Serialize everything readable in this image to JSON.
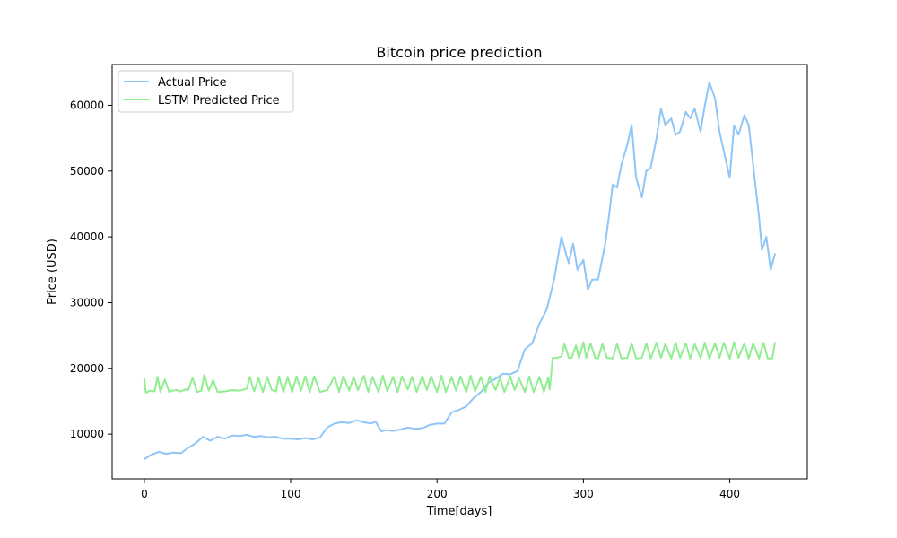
{
  "chart_data": {
    "type": "line",
    "title": "Bitcoin price prediction",
    "xlabel": "Time[days]",
    "ylabel": "Price (USD)",
    "xlim": [
      -22,
      453
    ],
    "ylim": [
      3200,
      66200
    ],
    "xticks": [
      0,
      100,
      200,
      300,
      400
    ],
    "yticks": [
      10000,
      20000,
      30000,
      40000,
      50000,
      60000
    ],
    "grid": false,
    "legend_position": "top-left",
    "series": [
      {
        "name": "Actual Price",
        "color": "#8fc6f7",
        "x": [
          0,
          5,
          10,
          15,
          20,
          25,
          30,
          35,
          40,
          45,
          50,
          55,
          60,
          65,
          70,
          75,
          80,
          85,
          90,
          95,
          100,
          105,
          110,
          115,
          120,
          125,
          130,
          135,
          140,
          145,
          150,
          155,
          158,
          162,
          165,
          170,
          175,
          180,
          185,
          190,
          195,
          200,
          205,
          210,
          215,
          220,
          225,
          230,
          235,
          240,
          245,
          250,
          255,
          260,
          265,
          270,
          275,
          280,
          285,
          288,
          290,
          293,
          296,
          300,
          303,
          306,
          310,
          315,
          318,
          320,
          323,
          326,
          330,
          333,
          336,
          340,
          343,
          346,
          350,
          353,
          356,
          360,
          363,
          366,
          370,
          373,
          376,
          380,
          383,
          386,
          390,
          393,
          396,
          400,
          403,
          406,
          410,
          413,
          416,
          420,
          422,
          425,
          428,
          431
        ],
        "values": [
          6200,
          6900,
          7300,
          7000,
          7200,
          7100,
          7900,
          8600,
          9600,
          9000,
          9600,
          9300,
          9800,
          9700,
          9900,
          9600,
          9700,
          9500,
          9600,
          9300,
          9300,
          9200,
          9400,
          9200,
          9500,
          11000,
          11600,
          11800,
          11700,
          12100,
          11800,
          11600,
          11900,
          10400,
          10600,
          10500,
          10700,
          11000,
          10800,
          10900,
          11400,
          11600,
          11600,
          13300,
          13700,
          14200,
          15500,
          16400,
          17800,
          18400,
          19200,
          19100,
          19600,
          22900,
          23800,
          26800,
          29000,
          33500,
          40000,
          37500,
          36000,
          39000,
          35000,
          36500,
          32000,
          33500,
          33500,
          39000,
          44000,
          48000,
          47500,
          51000,
          54000,
          57000,
          49000,
          46000,
          50000,
          50500,
          55000,
          59500,
          57000,
          58000,
          55500,
          56000,
          59000,
          58000,
          59500,
          56000,
          60000,
          63500,
          61000,
          56000,
          53000,
          49000,
          57000,
          55500,
          58500,
          57000,
          51000,
          43000,
          38000,
          40000,
          35000,
          37500
        ]
      },
      {
        "name": "LSTM Predicted Price",
        "color": "#90ee90",
        "x": [
          0,
          1,
          4,
          7,
          9,
          11,
          14,
          17,
          19,
          22,
          25,
          28,
          30,
          33,
          36,
          39,
          41,
          44,
          47,
          50,
          55,
          60,
          65,
          70,
          72,
          75,
          78,
          81,
          84,
          87,
          90,
          92,
          95,
          98,
          101,
          104,
          107,
          110,
          113,
          116,
          120,
          125,
          130,
          133,
          136,
          140,
          143,
          146,
          150,
          153,
          156,
          160,
          163,
          166,
          170,
          173,
          176,
          180,
          183,
          186,
          190,
          193,
          196,
          200,
          203,
          206,
          210,
          213,
          216,
          220,
          223,
          226,
          230,
          233,
          236,
          240,
          243,
          246,
          250,
          253,
          256,
          260,
          263,
          266,
          270,
          273,
          276,
          277,
          279,
          282,
          285,
          287,
          290,
          292,
          295,
          297,
          300,
          302,
          305,
          308,
          310,
          313,
          316,
          320,
          323,
          326,
          330,
          333,
          336,
          340,
          343,
          346,
          350,
          353,
          356,
          360,
          363,
          366,
          370,
          373,
          376,
          380,
          383,
          386,
          390,
          393,
          396,
          400,
          403,
          406,
          410,
          413,
          416,
          420,
          423,
          426,
          429,
          431
        ],
        "values": [
          18500,
          16300,
          16600,
          16500,
          18700,
          16400,
          18300,
          16400,
          16600,
          16700,
          16500,
          16800,
          16700,
          18600,
          16400,
          16600,
          19000,
          16600,
          18200,
          16400,
          16500,
          16700,
          16600,
          16900,
          18700,
          16500,
          18500,
          16400,
          18700,
          16700,
          16500,
          18800,
          16400,
          18700,
          16400,
          18800,
          16600,
          18800,
          16400,
          18800,
          16400,
          16700,
          18800,
          16400,
          18800,
          16600,
          18700,
          16700,
          18900,
          16400,
          18700,
          16400,
          18900,
          16500,
          18700,
          16400,
          18800,
          16800,
          18700,
          16400,
          18800,
          16700,
          18800,
          16400,
          18900,
          16400,
          18700,
          16600,
          18800,
          16400,
          18900,
          16500,
          18700,
          16400,
          18800,
          16700,
          18600,
          16400,
          18800,
          16700,
          18500,
          16400,
          18800,
          16400,
          18700,
          16400,
          18600,
          16800,
          21600,
          21600,
          21800,
          23700,
          21600,
          21600,
          23500,
          21500,
          24000,
          21600,
          23800,
          21600,
          21500,
          23700,
          21600,
          21500,
          23700,
          21500,
          21600,
          23800,
          21500,
          21600,
          23800,
          21500,
          23900,
          21600,
          23700,
          21500,
          23900,
          21600,
          23800,
          21500,
          23700,
          21600,
          23900,
          21500,
          23800,
          21600,
          23900,
          21500,
          24000,
          21600,
          23800,
          21500,
          23800,
          21500,
          23900,
          21500,
          21500,
          24000
        ]
      }
    ]
  }
}
